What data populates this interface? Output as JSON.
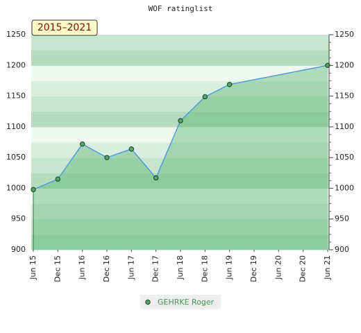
{
  "chart_data": {
    "type": "line",
    "title": "WOF ratinglist",
    "badge": "2015–2021",
    "x": [
      0,
      1,
      2,
      3,
      4,
      5,
      6,
      7,
      8,
      12
    ],
    "xlim": [
      0,
      12
    ],
    "xticks": [
      {
        "value": 0,
        "label": "Jun 15"
      },
      {
        "value": 1,
        "label": "Dec 15"
      },
      {
        "value": 2,
        "label": "Jun 16"
      },
      {
        "value": 3,
        "label": "Dec 16"
      },
      {
        "value": 4,
        "label": "Jun 17"
      },
      {
        "value": 5,
        "label": "Dec 17"
      },
      {
        "value": 6,
        "label": "Jun 18"
      },
      {
        "value": 7,
        "label": "Dec 18"
      },
      {
        "value": 8,
        "label": "Jun 19"
      },
      {
        "value": 9,
        "label": "Dec 19"
      },
      {
        "value": 10,
        "label": "Jun 20"
      },
      {
        "value": 11,
        "label": "Dec 20"
      },
      {
        "value": 12,
        "label": "Jun 21"
      }
    ],
    "series": [
      {
        "name": "GEHRKE Roger",
        "color": "#4e9ddb",
        "marker_color": "#4fa865",
        "values": [
          998,
          1015,
          1072,
          1050,
          1064,
          1017,
          1110,
          1149,
          1169,
          1200
        ]
      }
    ],
    "ylim": [
      900,
      1250
    ],
    "yticks": [
      900,
      950,
      1000,
      1050,
      1100,
      1150,
      1200,
      1250
    ]
  }
}
